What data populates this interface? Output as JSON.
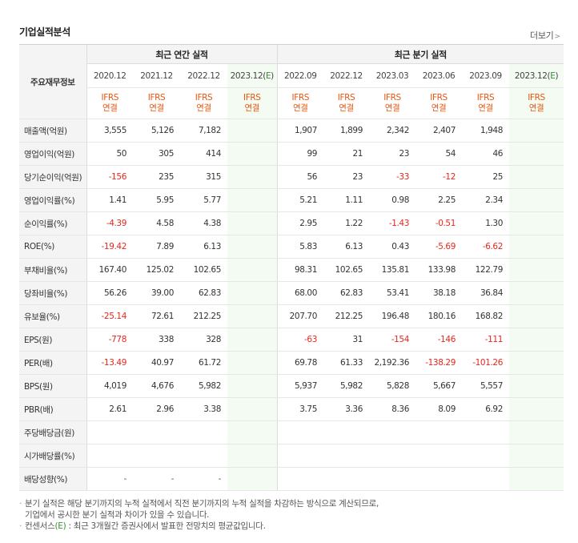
{
  "section": {
    "title": "기업실적분석",
    "more_label": "더보기"
  },
  "table": {
    "label_header": "주요재무정보",
    "group_annual": "최근 연간 실적",
    "group_quarter": "최근 분기 실적",
    "annual_periods": [
      "2020.12",
      "2021.12",
      "2022.12",
      "2023.12(E)"
    ],
    "quarter_periods": [
      "2022.09",
      "2022.12",
      "2023.03",
      "2023.06",
      "2023.09",
      "2023.12(E)"
    ],
    "std_top": "IFRS",
    "std_bottom": "연결",
    "rows": [
      {
        "label": "매출액(억원)",
        "annual": [
          "3,555",
          "5,126",
          "7,182",
          ""
        ],
        "quarter": [
          "1,907",
          "1,899",
          "2,342",
          "2,407",
          "1,948",
          ""
        ]
      },
      {
        "label": "영업이익(억원)",
        "annual": [
          "50",
          "305",
          "414",
          ""
        ],
        "quarter": [
          "99",
          "21",
          "23",
          "54",
          "46",
          ""
        ]
      },
      {
        "label": "당기순이익(억원)",
        "annual": [
          "-156",
          "235",
          "315",
          ""
        ],
        "quarter": [
          "56",
          "23",
          "-33",
          "-12",
          "25",
          ""
        ]
      },
      {
        "label": "영업이익률(%)",
        "annual": [
          "1.41",
          "5.95",
          "5.77",
          ""
        ],
        "quarter": [
          "5.21",
          "1.11",
          "0.98",
          "2.25",
          "2.34",
          ""
        ]
      },
      {
        "label": "순이익률(%)",
        "annual": [
          "-4.39",
          "4.58",
          "4.38",
          ""
        ],
        "quarter": [
          "2.95",
          "1.22",
          "-1.43",
          "-0.51",
          "1.30",
          ""
        ]
      },
      {
        "label": "ROE(%)",
        "annual": [
          "-19.42",
          "7.89",
          "6.13",
          ""
        ],
        "quarter": [
          "5.83",
          "6.13",
          "0.43",
          "-5.69",
          "-6.62",
          ""
        ]
      },
      {
        "label": "부채비율(%)",
        "annual": [
          "167.40",
          "125.02",
          "102.65",
          ""
        ],
        "quarter": [
          "98.31",
          "102.65",
          "135.81",
          "133.98",
          "122.79",
          ""
        ]
      },
      {
        "label": "당좌비율(%)",
        "annual": [
          "56.26",
          "39.00",
          "62.83",
          ""
        ],
        "quarter": [
          "68.00",
          "62.83",
          "53.41",
          "38.18",
          "36.84",
          ""
        ]
      },
      {
        "label": "유보율(%)",
        "annual": [
          "-25.14",
          "72.61",
          "212.25",
          ""
        ],
        "quarter": [
          "207.70",
          "212.25",
          "196.48",
          "180.16",
          "168.82",
          ""
        ]
      },
      {
        "label": "EPS(원)",
        "annual": [
          "-778",
          "338",
          "328",
          ""
        ],
        "quarter": [
          "-63",
          "31",
          "-154",
          "-146",
          "-111",
          ""
        ]
      },
      {
        "label": "PER(배)",
        "annual": [
          "-13.49",
          "40.97",
          "61.72",
          ""
        ],
        "quarter": [
          "69.78",
          "61.33",
          "2,192.36",
          "-138.29",
          "-101.26",
          ""
        ]
      },
      {
        "label": "BPS(원)",
        "annual": [
          "4,019",
          "4,676",
          "5,982",
          ""
        ],
        "quarter": [
          "5,937",
          "5,982",
          "5,828",
          "5,667",
          "5,557",
          ""
        ]
      },
      {
        "label": "PBR(배)",
        "annual": [
          "2.61",
          "2.96",
          "3.38",
          ""
        ],
        "quarter": [
          "3.75",
          "3.36",
          "8.36",
          "8.09",
          "6.92",
          ""
        ]
      },
      {
        "label": "주당배당금(원)",
        "annual": [
          "",
          "",
          "",
          ""
        ],
        "quarter": [
          "",
          "",
          "",
          "",
          "",
          ""
        ]
      },
      {
        "label": "시가배당률(%)",
        "annual": [
          "",
          "",
          "",
          ""
        ],
        "quarter": [
          "",
          "",
          "",
          "",
          "",
          ""
        ]
      },
      {
        "label": "배당성향(%)",
        "annual": [
          "-",
          "-",
          "-",
          ""
        ],
        "quarter": [
          "",
          "",
          "",
          "",
          "",
          ""
        ]
      }
    ]
  },
  "notes": {
    "line1": "분기 실적은 해당 분기까지의 누적 실적에서 직전 분기까지의 누적 실적을 차감하는 방식으로 계산되므로,",
    "line2": "기업에서 공시한 분기 실적과 차이가 있을 수 있습니다.",
    "line3_prefix": "컨센서스",
    "line3_e": "(E)",
    "line3_suffix": ": 최근 3개월간 증권사에서 발표한 전망치의 평균값입니다."
  },
  "colors": {
    "negative": "#e8261c",
    "standard": "#e8550e",
    "estimate_bg": "#f3fbf3",
    "estimate_mark": "#3a8a3a",
    "header_bg": "#f4f4f4"
  }
}
